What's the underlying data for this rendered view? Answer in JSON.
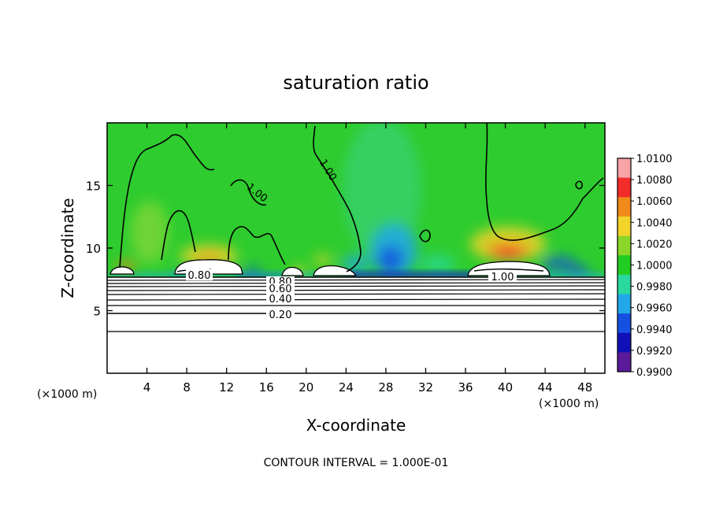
{
  "chart_data": {
    "type": "heatmap",
    "title": "saturation ratio",
    "xlabel": "X-coordinate",
    "ylabel": "Z-coordinate",
    "x_unit": "(×1000 m)",
    "x_unit_right": "(×1000 m)",
    "xlim": [
      0,
      50
    ],
    "ylim": [
      0,
      20
    ],
    "x_ticks": [
      4,
      8,
      12,
      16,
      20,
      24,
      28,
      32,
      36,
      40,
      44,
      48
    ],
    "y_ticks": [
      5,
      10,
      15
    ],
    "colorbar": {
      "levels": [
        "1.0100",
        "1.0080",
        "1.0060",
        "1.0040",
        "1.0020",
        "1.0000",
        "0.9980",
        "0.9960",
        "0.9940",
        "0.9920",
        "0.9900"
      ],
      "colors": [
        "#f7a3a8",
        "#f22b2b",
        "#f08a1a",
        "#f2d42a",
        "#8cd62a",
        "#22cc22",
        "#2ad8a0",
        "#21a8e8",
        "#1650e0",
        "#1010b8",
        "#5a1a9a"
      ]
    },
    "contour_labels": [
      "1.00",
      "1.00",
      "0.80",
      "0.80",
      "0.60",
      "0.40",
      "0.20",
      "1.00"
    ],
    "footer": "CONTOUR INTERVAL = 1.000E-01"
  }
}
